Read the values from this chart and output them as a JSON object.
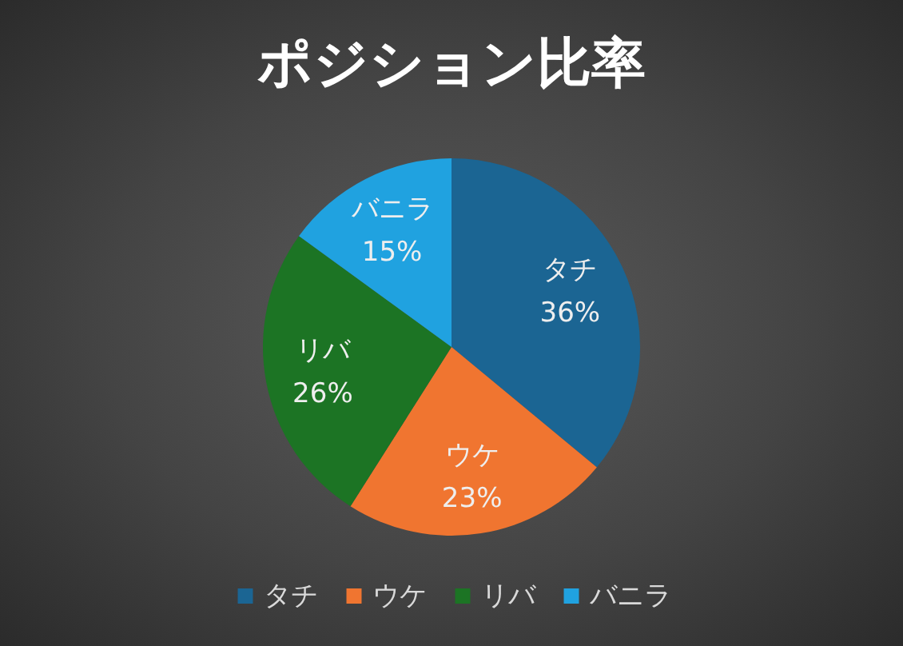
{
  "chart_data": {
    "type": "pie",
    "title": "ポジション比率",
    "categories": [
      "タチ",
      "ウケ",
      "リバ",
      "バニラ"
    ],
    "values": [
      36,
      23,
      26,
      15
    ],
    "colors": [
      "#1b6593",
      "#f07530",
      "#1c7424",
      "#20a2e0"
    ],
    "value_labels": [
      "36%",
      "23%",
      "26%",
      "15%"
    ],
    "legend": "bottom"
  }
}
